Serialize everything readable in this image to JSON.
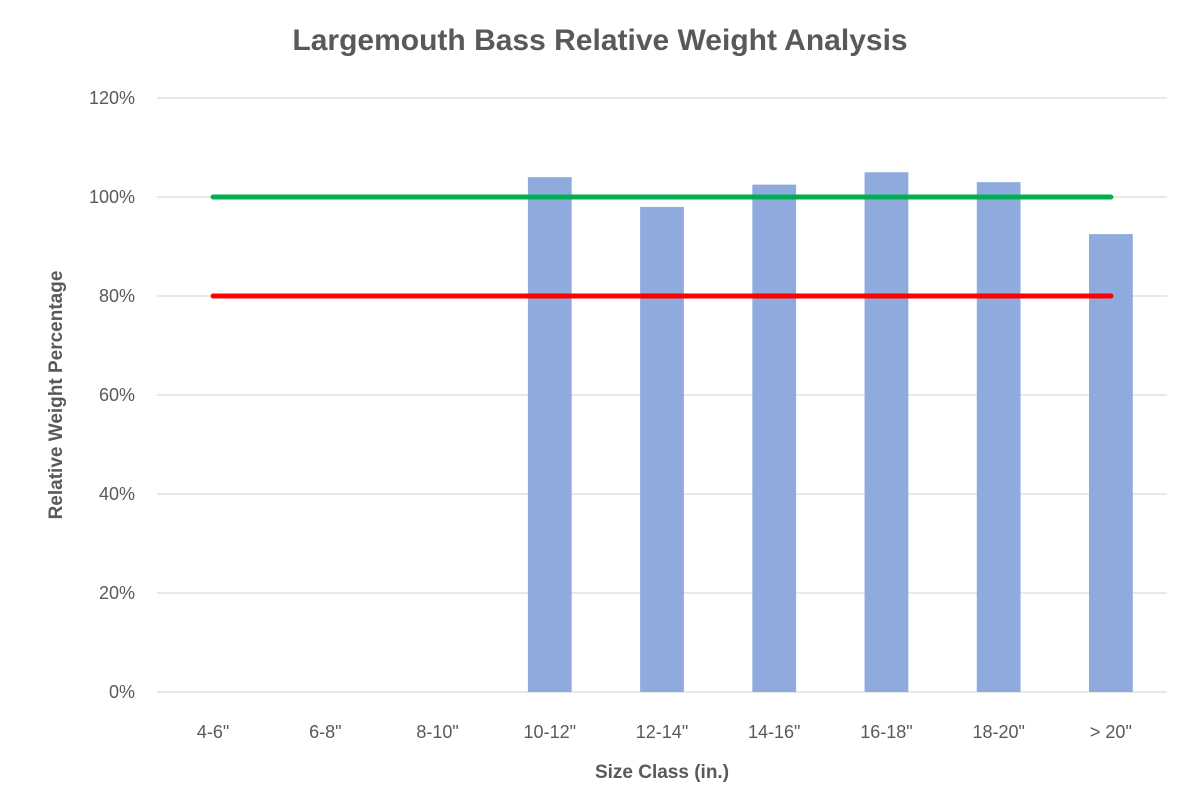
{
  "chart_data": {
    "type": "bar",
    "title": "Largemouth Bass Relative Weight Analysis",
    "xlabel": "Size Class (in.)",
    "ylabel": "Relative Weight Percentage",
    "categories": [
      "4-6\"",
      "6-8\"",
      "8-10\"",
      "10-12\"",
      "12-14\"",
      "14-16\"",
      "16-18\"",
      "18-20\"",
      "> 20\""
    ],
    "series": [
      {
        "values": [
          null,
          null,
          null,
          104,
          98,
          102.5,
          105,
          103,
          92.5
        ],
        "color": "#8faadc"
      }
    ],
    "reference_lines": [
      {
        "value": 100,
        "color": "#00b050"
      },
      {
        "value": 80,
        "color": "#ff0000"
      }
    ],
    "ylim": [
      0,
      120
    ],
    "yticks": [
      0,
      20,
      40,
      60,
      80,
      100,
      120
    ],
    "ytick_labels": [
      "0%",
      "20%",
      "40%",
      "60%",
      "80%",
      "100%",
      "120%"
    ],
    "grid": true,
    "gridline_color": "#d9d9d9",
    "legend": "none"
  }
}
